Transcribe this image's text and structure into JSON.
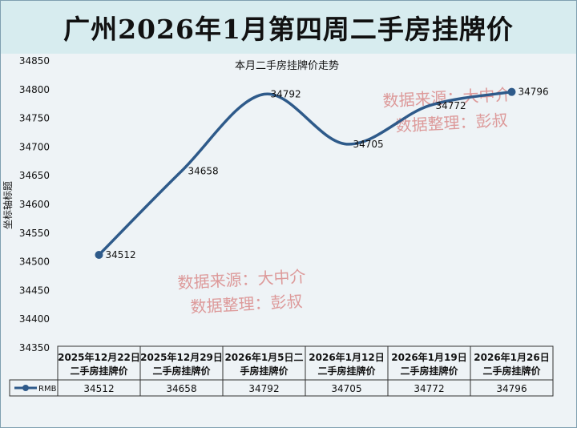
{
  "header": {
    "title": "广州2026年1月第四周二手房挂牌价"
  },
  "chart_data": {
    "type": "line",
    "title": "本月二手房挂牌价走势",
    "ylabel": "坐标轴标题",
    "ylim": [
      34350,
      34850
    ],
    "yticks": [
      34350,
      34400,
      34450,
      34500,
      34550,
      34600,
      34650,
      34700,
      34750,
      34800,
      34850
    ],
    "categories": [
      "2025年12月22日二手房挂牌价",
      "2025年12月29日二手房挂牌价",
      "2026年1月5日二手房挂牌价",
      "2026年1月12日二手房挂牌价",
      "2026年1月19日二手房挂牌价",
      "2026年1月26日二手房挂牌价"
    ],
    "category_lines": [
      [
        "2025年12月22日",
        "二手房挂牌价"
      ],
      [
        "2025年12月29日",
        "二手房挂牌价"
      ],
      [
        "2026年1月5日二",
        "手房挂牌价"
      ],
      [
        "2026年1月12日",
        "二手房挂牌价"
      ],
      [
        "2026年1月19日",
        "二手房挂牌价"
      ],
      [
        "2026年1月26日",
        "二手房挂牌价"
      ]
    ],
    "series": [
      {
        "name": "RMB",
        "values": [
          34512,
          34658,
          34792,
          34705,
          34772,
          34796
        ],
        "color": "#2e5a8a"
      }
    ],
    "grid": false,
    "legend": "data-table"
  },
  "watermarks": [
    {
      "line1": "数据来源：大中介",
      "line2": "数据整理：彭叔"
    },
    {
      "line1": "数据来源：大中介",
      "line2": "数据整理：彭叔"
    }
  ],
  "colors": {
    "line": "#2e5a8a",
    "watermark": "#d98a8a",
    "title_bg": "#d7ecef",
    "plot_bg": "#eef3f6"
  }
}
